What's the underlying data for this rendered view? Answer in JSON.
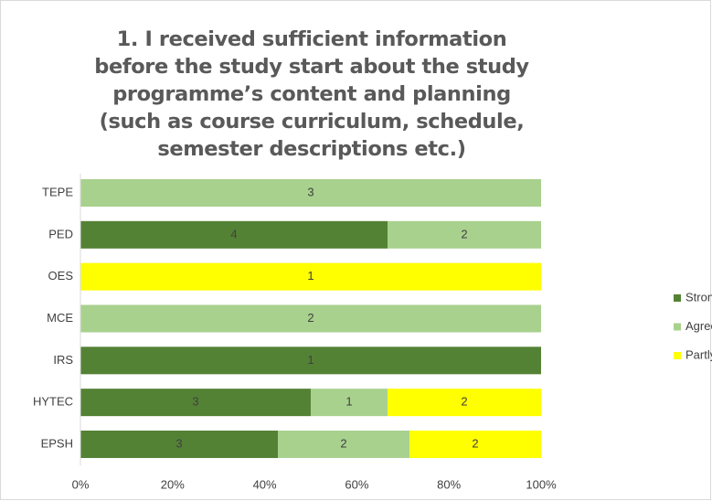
{
  "chart_data": {
    "type": "bar",
    "orientation": "horizontal",
    "stacking": "percent",
    "title": "1. I received sufficient information before the study start about the study programme’s content and planning (such as course curriculum, schedule, semester descriptions etc.)",
    "categories": [
      "TEPE",
      "PED",
      "OES",
      "MCE",
      "IRS",
      "HYTEC",
      "EPSH"
    ],
    "series": [
      {
        "name": "Strongly agree",
        "color": "#548235",
        "values": [
          null,
          4,
          null,
          null,
          1,
          3,
          3
        ]
      },
      {
        "name": "Agree",
        "color": "#a9d18e",
        "values": [
          3,
          2,
          null,
          2,
          null,
          1,
          2
        ]
      },
      {
        "name": "Partly agree",
        "color": "#ffff00",
        "values": [
          null,
          null,
          1,
          null,
          null,
          2,
          2
        ]
      }
    ],
    "xlim": [
      0,
      100
    ],
    "xticks": [
      {
        "value": 0,
        "label": "0%"
      },
      {
        "value": 20,
        "label": "20%"
      },
      {
        "value": 40,
        "label": "40%"
      },
      {
        "value": 60,
        "label": "60%"
      },
      {
        "value": 80,
        "label": "80%"
      },
      {
        "value": 100,
        "label": "100%"
      }
    ],
    "grid": false,
    "legend": "right"
  }
}
